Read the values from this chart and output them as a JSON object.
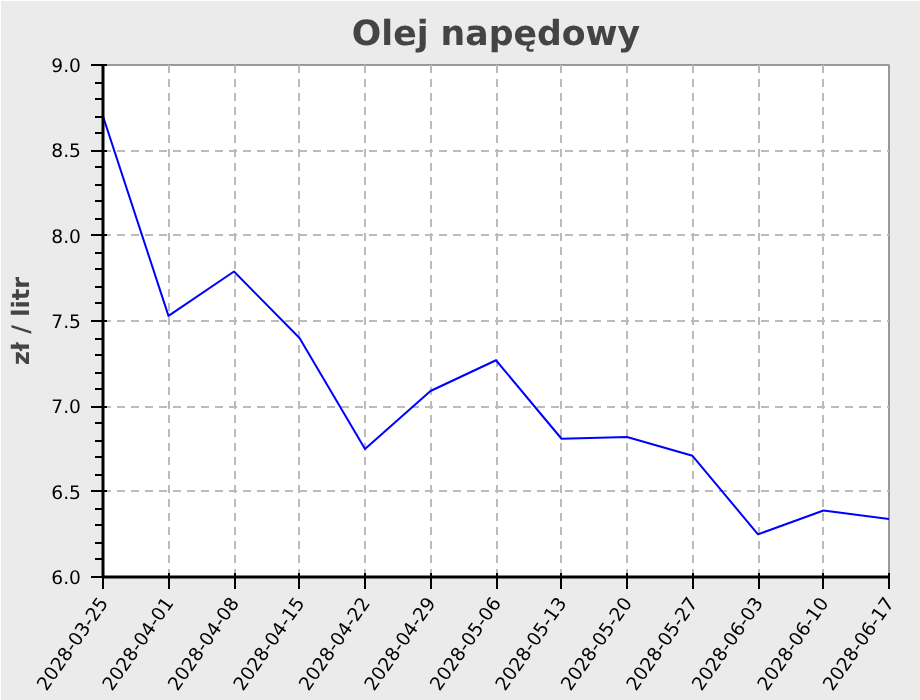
{
  "chart_data": {
    "type": "line",
    "title": "Olej napędowy",
    "ylabel": "zł / litr",
    "categories": [
      "2028-03-25",
      "2028-04-01",
      "2028-04-08",
      "2028-04-15",
      "2028-04-22",
      "2028-04-29",
      "2028-05-06",
      "2028-05-13",
      "2028-05-20",
      "2028-05-27",
      "2028-06-03",
      "2028-06-10",
      "2028-06-17"
    ],
    "series": [
      {
        "color": "#0000ff",
        "values": [
          8.7,
          7.53,
          7.79,
          7.4,
          6.75,
          7.09,
          7.27,
          6.81,
          6.82,
          6.71,
          6.25,
          6.39,
          6.34
        ]
      }
    ],
    "ylim": [
      6.0,
      9.0
    ],
    "yticks": [
      {
        "value": 6.0,
        "label": "6.0"
      },
      {
        "value": 6.5,
        "label": "6.5"
      },
      {
        "value": 7.0,
        "label": "7.0"
      },
      {
        "value": 7.5,
        "label": "7.5"
      },
      {
        "value": 8.0,
        "label": "8.0"
      },
      {
        "value": 8.5,
        "label": "8.5"
      },
      {
        "value": 9.0,
        "label": "9.0"
      }
    ],
    "grid": true,
    "marker": "none",
    "line_style": "solid"
  }
}
